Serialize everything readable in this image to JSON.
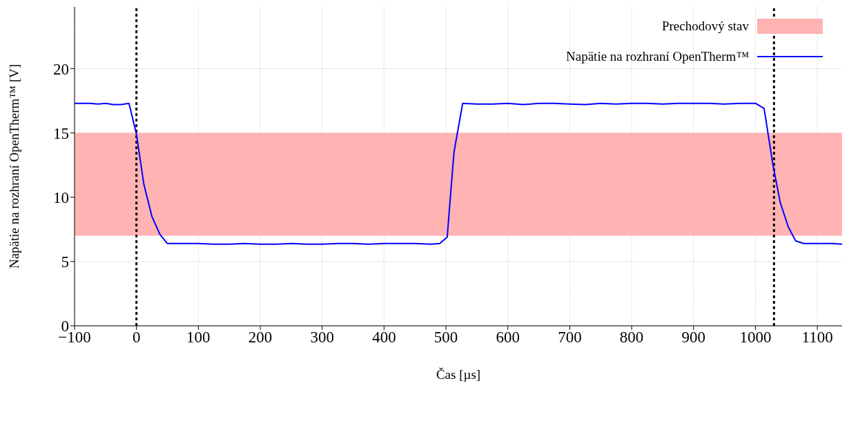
{
  "chart_data": {
    "type": "line",
    "xlabel": "Čas [µs]",
    "ylabel": "Napätie na rozhraní OpenTherm™ [V]",
    "xlim": [
      -100,
      1140
    ],
    "ylim": [
      0,
      24.8
    ],
    "xticks": [
      {
        "value": -100,
        "label": "−100"
      },
      0,
      100,
      200,
      300,
      400,
      500,
      600,
      700,
      800,
      900,
      1000,
      1100
    ],
    "yticks": [
      0,
      5,
      10,
      15,
      20
    ],
    "grid": true,
    "legend": "top right",
    "marker": "none",
    "line_style": "solid",
    "bands": [
      {
        "axis": "y",
        "from": 7,
        "to": 15,
        "label": "Prechodový stav",
        "color": "#ffb3b3"
      }
    ],
    "ref_lines": [
      {
        "axis": "x",
        "value": 0,
        "color": "#000000",
        "line_style": "dashed"
      },
      {
        "axis": "x",
        "value": 1030,
        "color": "#000000",
        "line_style": "dashed"
      }
    ],
    "series": [
      {
        "name": "Napätie na rozhraní OpenTherm™",
        "color": "#0000ff",
        "x": [
          -100,
          -87,
          -75,
          -62,
          -50,
          -37,
          -25,
          -12,
          0,
          12,
          25,
          38,
          50,
          75,
          100,
          125,
          150,
          175,
          200,
          225,
          250,
          275,
          300,
          325,
          350,
          375,
          400,
          425,
          450,
          475,
          490,
          502,
          513,
          527,
          550,
          575,
          600,
          625,
          650,
          675,
          700,
          725,
          750,
          775,
          800,
          825,
          850,
          875,
          900,
          925,
          950,
          975,
          1000,
          1014,
          1028,
          1040,
          1053,
          1065,
          1078,
          1100,
          1125,
          1140
        ],
        "values": [
          17.3,
          17.3,
          17.3,
          17.25,
          17.3,
          17.2,
          17.2,
          17.3,
          14.9,
          11,
          8.5,
          7.1,
          6.4,
          6.4,
          6.4,
          6.35,
          6.35,
          6.4,
          6.35,
          6.35,
          6.4,
          6.35,
          6.35,
          6.4,
          6.4,
          6.35,
          6.4,
          6.4,
          6.4,
          6.35,
          6.4,
          6.9,
          13.5,
          17.3,
          17.25,
          17.25,
          17.3,
          17.2,
          17.3,
          17.3,
          17.25,
          17.2,
          17.3,
          17.25,
          17.3,
          17.3,
          17.25,
          17.3,
          17.3,
          17.3,
          17.25,
          17.3,
          17.3,
          16.9,
          12.6,
          9.6,
          7.7,
          6.6,
          6.4,
          6.4,
          6.4,
          6.35
        ]
      }
    ]
  }
}
